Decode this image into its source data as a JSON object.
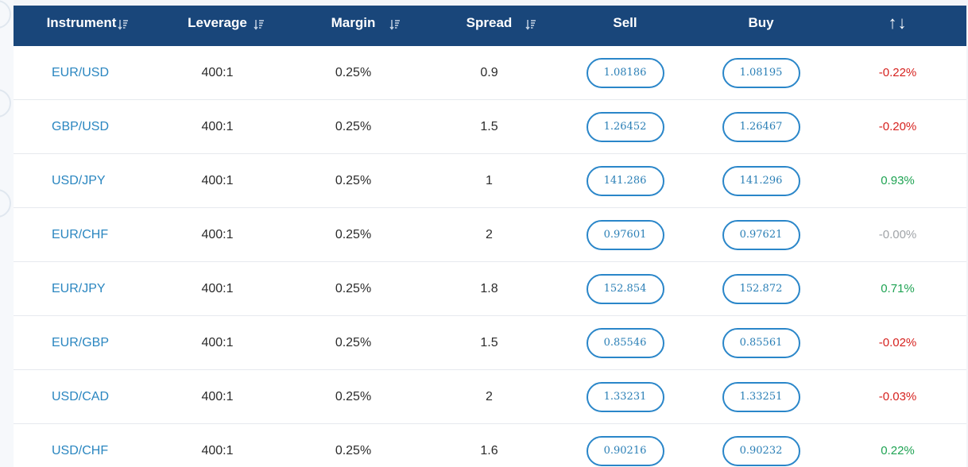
{
  "table": {
    "headers": {
      "instrument": "Instrument",
      "leverage": "Leverage",
      "margin": "Margin",
      "spread": "Spread",
      "sell": "Sell",
      "buy": "Buy",
      "change": "↑↓"
    },
    "rows": [
      {
        "instrument": "EUR/USD",
        "leverage": "400:1",
        "margin": "0.25%",
        "spread": "0.9",
        "sell": "1.08186",
        "buy": "1.08195",
        "change": "-0.22%",
        "trend": "neg"
      },
      {
        "instrument": "GBP/USD",
        "leverage": "400:1",
        "margin": "0.25%",
        "spread": "1.5",
        "sell": "1.26452",
        "buy": "1.26467",
        "change": "-0.20%",
        "trend": "neg"
      },
      {
        "instrument": "USD/JPY",
        "leverage": "400:1",
        "margin": "0.25%",
        "spread": "1",
        "sell": "141.286",
        "buy": "141.296",
        "change": "0.93%",
        "trend": "pos"
      },
      {
        "instrument": "EUR/CHF",
        "leverage": "400:1",
        "margin": "0.25%",
        "spread": "2",
        "sell": "0.97601",
        "buy": "0.97621",
        "change": "-0.00%",
        "trend": "neu"
      },
      {
        "instrument": "EUR/JPY",
        "leverage": "400:1",
        "margin": "0.25%",
        "spread": "1.8",
        "sell": "152.854",
        "buy": "152.872",
        "change": "0.71%",
        "trend": "pos"
      },
      {
        "instrument": "EUR/GBP",
        "leverage": "400:1",
        "margin": "0.25%",
        "spread": "1.5",
        "sell": "0.85546",
        "buy": "0.85561",
        "change": "-0.02%",
        "trend": "neg"
      },
      {
        "instrument": "USD/CAD",
        "leverage": "400:1",
        "margin": "0.25%",
        "spread": "2",
        "sell": "1.33231",
        "buy": "1.33251",
        "change": "-0.03%",
        "trend": "neg"
      },
      {
        "instrument": "USD/CHF",
        "leverage": "400:1",
        "margin": "0.25%",
        "spread": "1.6",
        "sell": "0.90216",
        "buy": "0.90232",
        "change": "0.22%",
        "trend": "pos"
      }
    ]
  },
  "colors": {
    "header_bg": "#19467a",
    "instrument_link": "#2a86c0",
    "price_border": "#2a86c9",
    "negative": "#d6221f",
    "positive": "#1fa353",
    "neutral": "#a0a4a8"
  },
  "icons": {
    "sort": "sort-descending-icon",
    "change_arrows": "up-down-arrows-icon"
  }
}
